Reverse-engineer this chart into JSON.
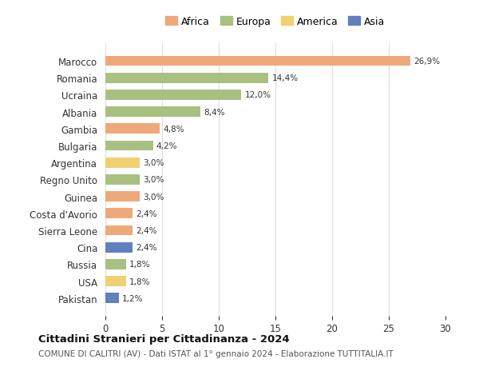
{
  "countries": [
    "Marocco",
    "Romania",
    "Ucraina",
    "Albania",
    "Gambia",
    "Bulgaria",
    "Argentina",
    "Regno Unito",
    "Guinea",
    "Costa d'Avorio",
    "Sierra Leone",
    "Cina",
    "Russia",
    "USA",
    "Pakistan"
  ],
  "values": [
    26.9,
    14.4,
    12.0,
    8.4,
    4.8,
    4.2,
    3.0,
    3.0,
    3.0,
    2.4,
    2.4,
    2.4,
    1.8,
    1.8,
    1.2
  ],
  "continents": [
    "Africa",
    "Europa",
    "Europa",
    "Europa",
    "Africa",
    "Europa",
    "America",
    "Europa",
    "Africa",
    "Africa",
    "Africa",
    "Asia",
    "Europa",
    "America",
    "Asia"
  ],
  "colors": {
    "Africa": "#F0A878",
    "Europa": "#A8C080",
    "America": "#F0D070",
    "Asia": "#6080C0"
  },
  "legend_order": [
    "Africa",
    "Europa",
    "America",
    "Asia"
  ],
  "title": "Cittadini Stranieri per Cittadinanza - 2024",
  "subtitle": "COMUNE DI CALITRI (AV) - Dati ISTAT al 1° gennaio 2024 - Elaborazione TUTTITALIA.IT",
  "xlim": [
    0,
    30
  ],
  "xticks": [
    0,
    5,
    10,
    15,
    20,
    25,
    30
  ],
  "background_color": "#ffffff",
  "grid_color": "#dddddd"
}
